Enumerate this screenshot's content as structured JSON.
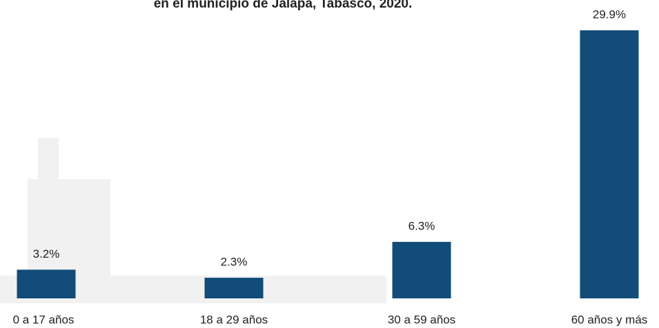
{
  "chart_data": {
    "type": "bar",
    "title": "en el municipio de Jalapa, Tabasco, 2020.",
    "categories": [
      "0 a 17 años",
      "18 a 29 años",
      "30 a 59 años",
      "60 años y más"
    ],
    "values": [
      3.2,
      2.3,
      6.3,
      29.9
    ],
    "value_labels": [
      "3.2%",
      "2.3%",
      "6.3%",
      "29.9%"
    ],
    "color": "#124c78"
  }
}
